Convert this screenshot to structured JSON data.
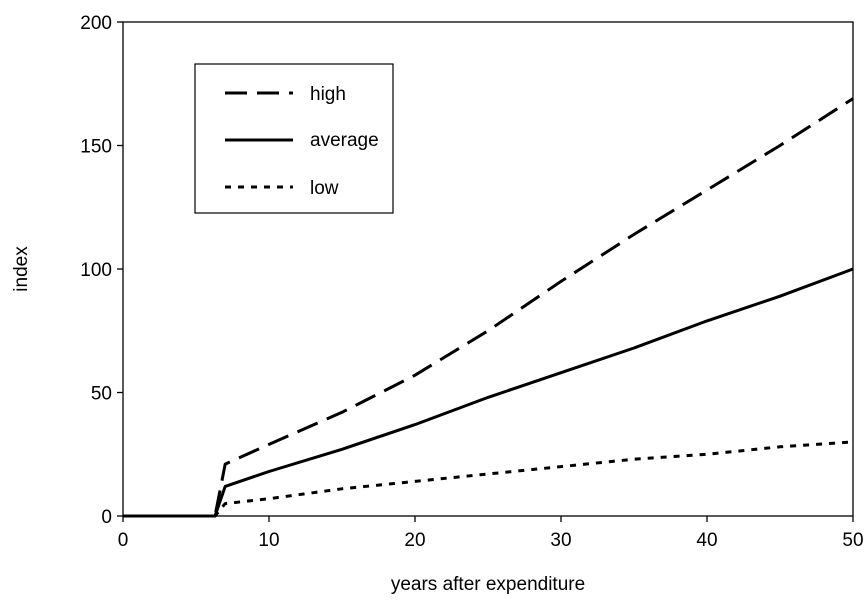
{
  "chart_data": {
    "type": "line",
    "title": "",
    "xlabel": "years after expenditure",
    "ylabel": "index",
    "xlim": [
      0,
      50
    ],
    "ylim": [
      0,
      200
    ],
    "xticks": [
      0,
      10,
      20,
      30,
      40,
      50
    ],
    "yticks": [
      0,
      50,
      100,
      150,
      200
    ],
    "xtick_labels": [
      "0",
      "10",
      "20",
      "30",
      "40",
      "50"
    ],
    "ytick_labels": [
      "0",
      "50",
      "100",
      "150",
      "200"
    ],
    "grid": false,
    "legend_position": "top-left",
    "series": [
      {
        "name": "high",
        "line_style": "dashed",
        "color": "#000000",
        "x": [
          0,
          6,
          6.3,
          7,
          10,
          15,
          20,
          25,
          30,
          35,
          40,
          45,
          50
        ],
        "y": [
          0,
          0,
          0,
          21,
          29,
          42,
          57,
          75,
          95,
          114,
          132,
          150,
          169
        ]
      },
      {
        "name": "average",
        "line_style": "solid",
        "color": "#000000",
        "x": [
          0,
          6,
          6.3,
          7,
          10,
          15,
          20,
          25,
          30,
          35,
          40,
          45,
          50
        ],
        "y": [
          0,
          0,
          0,
          12,
          18,
          27,
          37,
          48,
          58,
          68,
          79,
          89,
          100
        ]
      },
      {
        "name": "low",
        "line_style": "dotted",
        "color": "#000000",
        "x": [
          0,
          6,
          6.3,
          7,
          10,
          15,
          20,
          25,
          30,
          35,
          40,
          45,
          50
        ],
        "y": [
          0,
          0,
          0,
          5,
          7,
          11,
          14,
          17,
          20,
          23,
          25,
          28,
          30
        ]
      }
    ]
  }
}
